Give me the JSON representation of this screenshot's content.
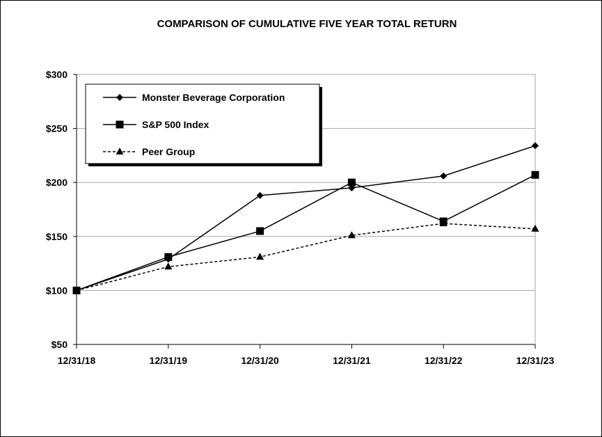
{
  "chart_data": {
    "type": "line",
    "title": "COMPARISON OF CUMULATIVE FIVE YEAR TOTAL RETURN",
    "categories": [
      "12/31/18",
      "12/31/19",
      "12/31/20",
      "12/31/21",
      "12/31/22",
      "12/31/23"
    ],
    "series": [
      {
        "name": "Monster Beverage Corporation",
        "marker": "diamond",
        "line": "solid",
        "values": [
          100,
          129,
          188,
          195,
          206,
          234
        ]
      },
      {
        "name": "S&P 500 Index",
        "marker": "square",
        "line": "solid",
        "values": [
          100,
          131,
          155,
          200,
          164,
          207
        ]
      },
      {
        "name": "Peer Group",
        "marker": "triangle",
        "line": "dashed",
        "values": [
          100,
          122,
          131,
          151,
          162,
          157
        ]
      }
    ],
    "y_ticks": [
      "$300",
      "$250",
      "$200",
      "$150",
      "$100",
      "$50"
    ],
    "y_tick_values": [
      300,
      250,
      200,
      150,
      100,
      50
    ],
    "ylim": [
      50,
      300
    ],
    "grid": "horizontal",
    "legend_position": "top-left",
    "colors": {
      "line": "#000000",
      "grid": "#a6a6a6",
      "background": "#ffffff"
    }
  }
}
